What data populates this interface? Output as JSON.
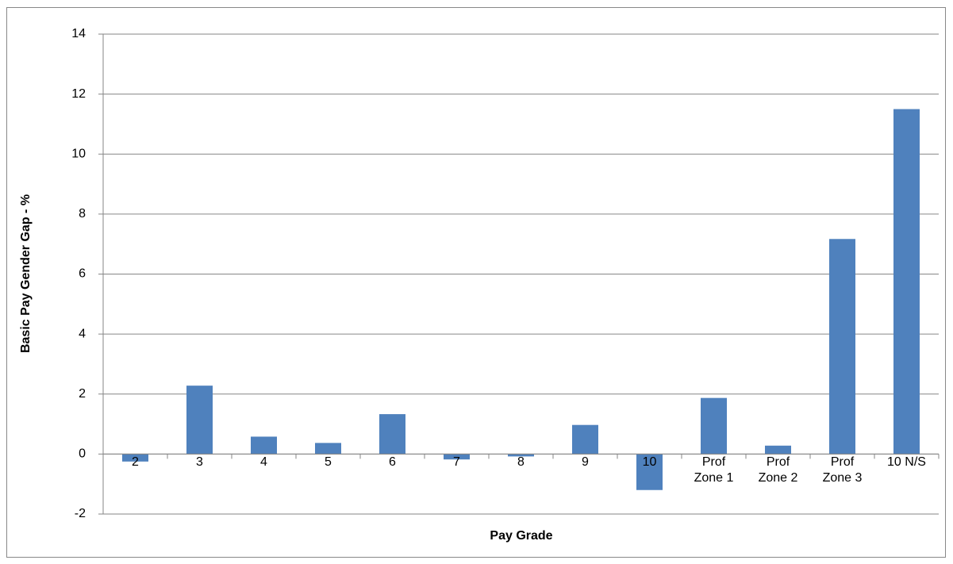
{
  "chart_data": {
    "type": "bar",
    "x_label": "Pay Grade",
    "y_label": "Basic Pay Gender Gap - %",
    "categories": [
      "2",
      "3",
      "4",
      "5",
      "6",
      "7",
      "8",
      "9",
      "10",
      "Prof Zone 1",
      "Prof Zone 2",
      "Prof Zone 3",
      "10 N/S"
    ],
    "values": [
      -0.25,
      2.28,
      0.58,
      0.37,
      1.33,
      -0.18,
      -0.08,
      0.97,
      -1.2,
      1.87,
      0.28,
      7.17,
      11.5
    ],
    "color": "#4f81bd",
    "ylim": [
      -2,
      14
    ],
    "yticks": [
      -2,
      0,
      2,
      4,
      6,
      8,
      10,
      12,
      14
    ],
    "grid": true
  }
}
